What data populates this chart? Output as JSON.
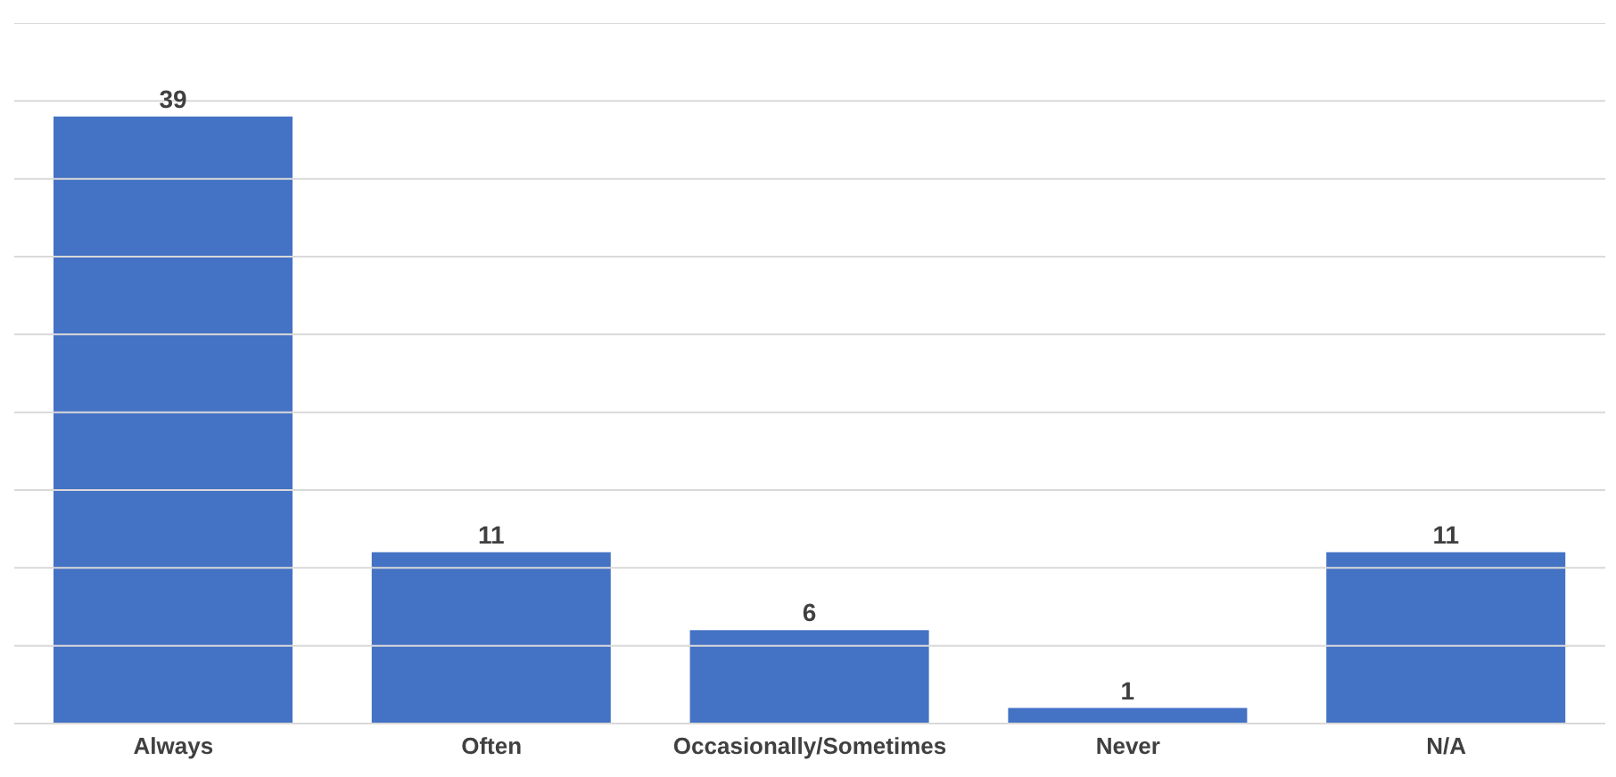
{
  "chart_data": {
    "type": "bar",
    "categories": [
      "Always",
      "Often",
      "Occasionally/Sometimes",
      "Never",
      "N/A"
    ],
    "values": [
      39,
      11,
      6,
      1,
      11
    ],
    "color": "#4472c4",
    "data_labels": true,
    "grid": "y",
    "tick_labels": "x",
    "ylim": [
      0,
      45
    ],
    "yticks": [
      {
        "value": 0,
        "label": null
      },
      {
        "value": 5,
        "label": null
      },
      {
        "value": 10,
        "label": null
      },
      {
        "value": 15,
        "label": null
      },
      {
        "value": 20,
        "label": null
      },
      {
        "value": 25,
        "label": null
      },
      {
        "value": 30,
        "label": null
      },
      {
        "value": 35,
        "label": null
      },
      {
        "value": 40,
        "label": null
      },
      {
        "value": 45,
        "label": null
      }
    ]
  }
}
